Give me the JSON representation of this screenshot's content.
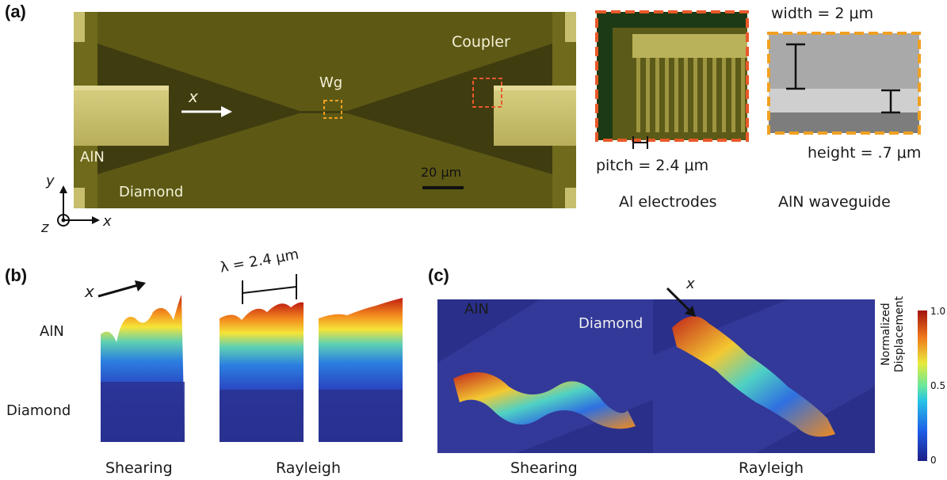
{
  "panels": {
    "a": {
      "label": "(a)",
      "micrograph": {
        "coupler": "Coupler",
        "wg": "Wg",
        "x_arrow": "x",
        "aln": "AlN",
        "diamond": "Diamond",
        "scale_bar": "20 μm"
      },
      "axes": {
        "y": "y",
        "x": "x",
        "z": "z"
      },
      "electrodes": {
        "pitch": "pitch = 2.4 μm",
        "caption": "Al electrodes"
      },
      "waveguide": {
        "width": "width = 2 μm",
        "height": "height = .7 μm",
        "caption": "AlN waveguide"
      }
    },
    "b": {
      "label": "(b)",
      "x_arrow": "x",
      "aln": "AlN",
      "diamond": "Diamond",
      "wavelength": "λ = 2.4 μm",
      "cap_shearing": "Shearing",
      "cap_rayleigh": "Rayleigh"
    },
    "c": {
      "label": "(c)",
      "aln": "AlN",
      "diamond": "Diamond",
      "x_arrow": "x",
      "cap_shearing": "Shearing",
      "cap_rayleigh": "Rayleigh",
      "colorbar": {
        "title_line1": "Normalized",
        "title_line2": "Displacement",
        "max": "1.0",
        "mid": "0.5",
        "min": "0"
      }
    }
  },
  "colors": {
    "dashed_red": "#e8592a",
    "dashed_orange": "#f0a021",
    "substrate_blue": "#2a2f8a"
  }
}
